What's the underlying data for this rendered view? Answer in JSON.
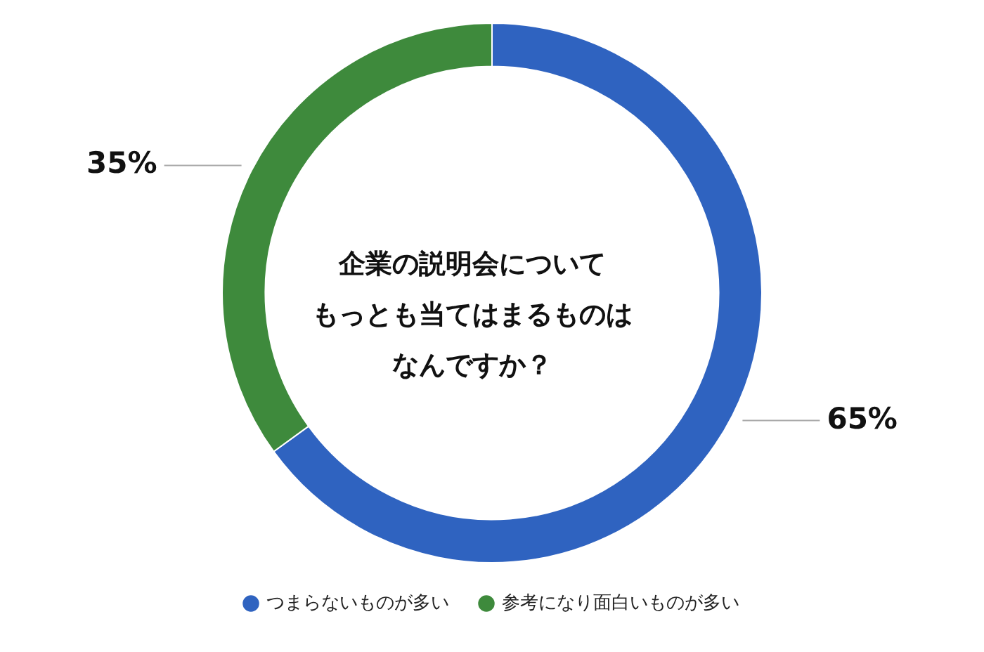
{
  "chart_data": {
    "type": "donut",
    "annotations": [
      "企業の説明会について",
      "もっとも当てはまるものは",
      "なんですか？"
    ],
    "categories": [
      "つまらないものが多い",
      "参考になり面白いものが多い"
    ],
    "values": [
      65,
      35
    ],
    "value_labels": [
      "65%",
      "35%"
    ],
    "colors": [
      "#2f63c0",
      "#3e8a3c"
    ],
    "legend": "bottom"
  }
}
